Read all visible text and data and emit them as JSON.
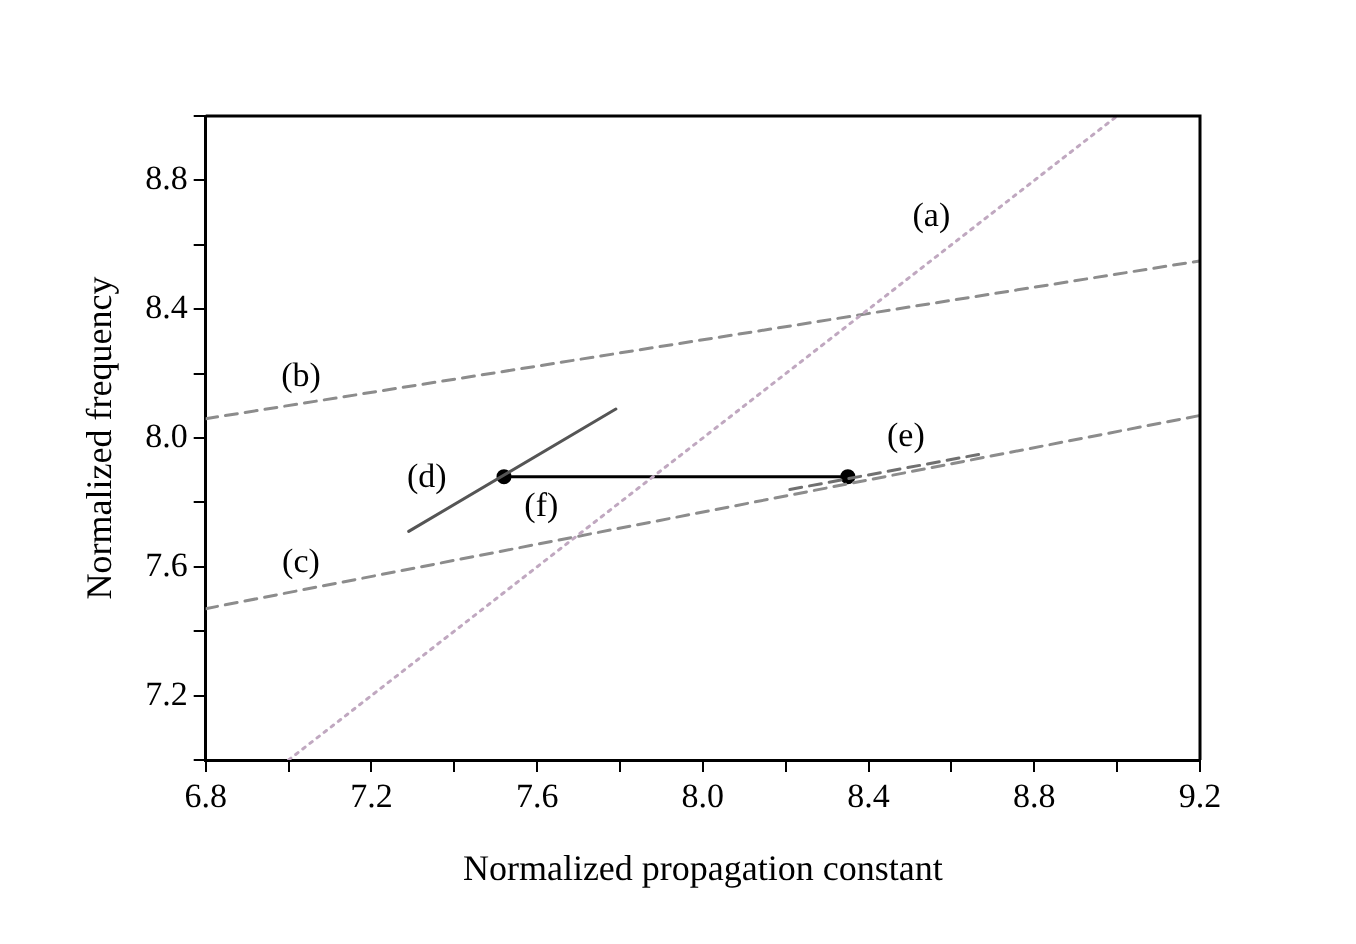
{
  "chart_data": {
    "type": "line",
    "xlabel": "Normalized propagation constant",
    "ylabel": "Normalized frequency",
    "xlim": [
      6.8,
      9.2
    ],
    "ylim": [
      7.0,
      9.0
    ],
    "xticks": [
      6.8,
      {
        "value": 7.0,
        "label": null
      },
      7.2,
      {
        "value": 7.4,
        "label": null
      },
      7.6,
      {
        "value": 7.8,
        "label": null
      },
      {
        "value": 8.0,
        "label": "8.0"
      },
      {
        "value": 8.2,
        "label": null
      },
      8.4,
      {
        "value": 8.6,
        "label": null
      },
      8.8,
      {
        "value": 9.0,
        "label": null
      },
      9.2
    ],
    "yticks": [
      {
        "value": 7.0,
        "label": null
      },
      7.2,
      {
        "value": 7.4,
        "label": null
      },
      7.6,
      {
        "value": 7.8,
        "label": null
      },
      {
        "value": 8.0,
        "label": "8.0"
      },
      {
        "value": 8.2,
        "label": null
      },
      8.4,
      {
        "value": 8.6,
        "label": null
      },
      8.8,
      {
        "value": 9.0,
        "label": null
      }
    ],
    "grid": false,
    "legend": false,
    "series": [
      {
        "color": "#c0a8c0",
        "x": [
          7.0,
          9.0
        ],
        "values": [
          7.0,
          9.0
        ],
        "line_style": "dotted",
        "marker": "none"
      },
      {
        "color": "#8c8c8c",
        "x": [
          6.8,
          9.2
        ],
        "values": [
          8.06,
          8.55
        ],
        "line_style": "dashed",
        "marker": "none"
      },
      {
        "color": "#8c8c8c",
        "x": [
          6.8,
          9.2
        ],
        "values": [
          7.47,
          8.07
        ],
        "line_style": "dashed",
        "marker": "none"
      },
      {
        "color": "#555555",
        "x": [
          7.29,
          7.79
        ],
        "values": [
          7.71,
          8.09
        ],
        "line_style": "solid",
        "marker": "none"
      },
      {
        "color": "#707070",
        "x": [
          8.21,
          8.67
        ],
        "values": [
          7.84,
          7.95
        ],
        "line_style": "dashed",
        "marker": "none"
      },
      {
        "color": "#000000",
        "x": [
          7.52,
          8.35
        ],
        "values": [
          7.88,
          7.88
        ],
        "line_style": "solid",
        "marker": "circle"
      }
    ],
    "annotations": [
      {
        "text": "(a)",
        "x": 8.6,
        "y": 8.6
      },
      {
        "text": "(b)",
        "x": 7.03,
        "y": 8.11
      },
      {
        "text": "(c)",
        "x": 7.03,
        "y": 7.53
      },
      {
        "text": "(d)",
        "x": 7.44,
        "y": 7.82
      },
      {
        "text": "(e)",
        "x": 8.49,
        "y": 7.91
      },
      {
        "text": "(f)",
        "x": 7.61,
        "y": 7.88
      }
    ]
  }
}
